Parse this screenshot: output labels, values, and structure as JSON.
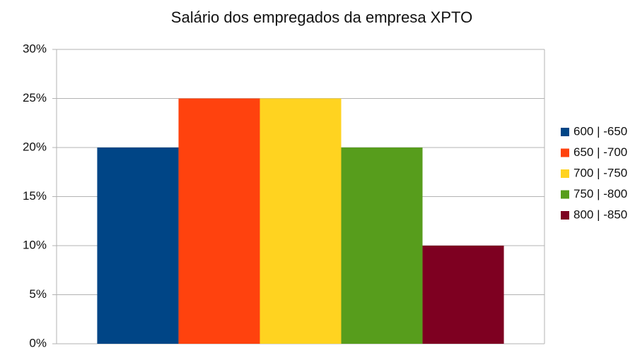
{
  "chart_data": {
    "type": "bar",
    "title": "Salário dos empregados da empresa XPTO",
    "categories": [
      null
    ],
    "series": [
      {
        "name": "600 | -650",
        "color": "#004586",
        "values": [
          20
        ]
      },
      {
        "name": "650 | -700",
        "color": "#ff420e",
        "values": [
          25
        ]
      },
      {
        "name": "700 | -750",
        "color": "#ffd320",
        "values": [
          25
        ]
      },
      {
        "name": "750 | -800",
        "color": "#579d1c",
        "values": [
          20
        ]
      },
      {
        "name": "800 | -850",
        "color": "#7e0021",
        "values": [
          10
        ]
      }
    ],
    "ylim": [
      0,
      30
    ],
    "yticks": [
      {
        "value": 0,
        "label": "0%"
      },
      {
        "value": 5,
        "label": "5%"
      },
      {
        "value": 10,
        "label": "10%"
      },
      {
        "value": 15,
        "label": "15%"
      },
      {
        "value": 20,
        "label": "20%"
      },
      {
        "value": 25,
        "label": "25%"
      },
      {
        "value": 30,
        "label": "30%"
      }
    ],
    "grid": true,
    "legend": "right"
  }
}
